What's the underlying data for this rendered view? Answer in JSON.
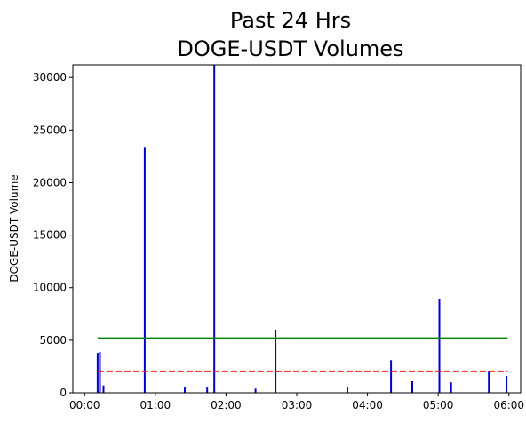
{
  "chart_data": {
    "type": "bar",
    "title": [
      "Past 24 Hrs",
      "DOGE-USDT Volumes"
    ],
    "xlabel": "",
    "ylabel": "DOGE-USDT Volume",
    "xlim_minutes": [
      -10,
      370
    ],
    "ylim": [
      0,
      31200
    ],
    "x_ticks": [
      {
        "label": "00:00",
        "minutes": 0
      },
      {
        "label": "01:00",
        "minutes": 60
      },
      {
        "label": "02:00",
        "minutes": 120
      },
      {
        "label": "03:00",
        "minutes": 180
      },
      {
        "label": "04:00",
        "minutes": 240
      },
      {
        "label": "05:00",
        "minutes": 300
      },
      {
        "label": "06:00",
        "minutes": 360
      }
    ],
    "y_ticks": [
      0,
      5000,
      10000,
      15000,
      20000,
      25000,
      30000
    ],
    "grid": false,
    "bar_color": "#0000cc",
    "bars": [
      {
        "time": "00:11",
        "minutes": 11,
        "value": 3800
      },
      {
        "time": "00:13",
        "minutes": 13,
        "value": 3900
      },
      {
        "time": "00:16",
        "minutes": 16,
        "value": 700
      },
      {
        "time": "00:51",
        "minutes": 51,
        "value": 23400
      },
      {
        "time": "01:25",
        "minutes": 85,
        "value": 500
      },
      {
        "time": "01:44",
        "minutes": 104,
        "value": 500
      },
      {
        "time": "01:50",
        "minutes": 110,
        "value": 31200
      },
      {
        "time": "02:25",
        "minutes": 145,
        "value": 400
      },
      {
        "time": "02:42",
        "minutes": 162,
        "value": 6000
      },
      {
        "time": "03:43",
        "minutes": 223,
        "value": 500
      },
      {
        "time": "04:20",
        "minutes": 260,
        "value": 3100
      },
      {
        "time": "04:38",
        "minutes": 278,
        "value": 1100
      },
      {
        "time": "05:01",
        "minutes": 301,
        "value": 8900
      },
      {
        "time": "05:11",
        "minutes": 311,
        "value": 1000
      },
      {
        "time": "05:43",
        "minutes": 343,
        "value": 2100
      },
      {
        "time": "05:58",
        "minutes": 358,
        "value": 1600
      }
    ],
    "reference_lines": [
      {
        "color": "#008000",
        "style": "solid",
        "value": 5200,
        "x_start_minutes": 11,
        "x_end_minutes": 359
      },
      {
        "color": "#ff0000",
        "style": "dashed",
        "value": 2050,
        "x_start_minutes": 11,
        "x_end_minutes": 359
      }
    ]
  }
}
